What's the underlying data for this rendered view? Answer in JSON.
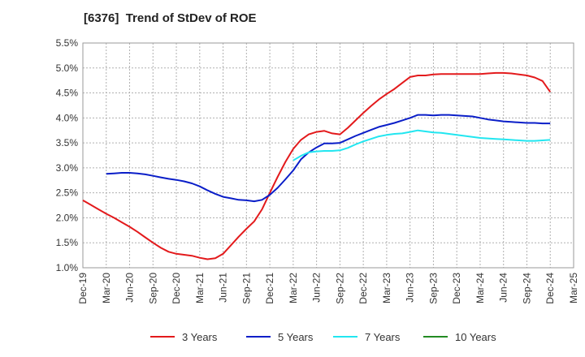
{
  "title": "[6376]  Trend of StDev of ROE",
  "chart_data": {
    "type": "line",
    "title": "[6376]  Trend of StDev of ROE",
    "xlabel": "",
    "ylabel": "",
    "x_ticks": [
      "Dec-19",
      "Mar-20",
      "Jun-20",
      "Sep-20",
      "Dec-20",
      "Mar-21",
      "Jun-21",
      "Sep-21",
      "Dec-21",
      "Mar-22",
      "Jun-22",
      "Sep-22",
      "Dec-22",
      "Mar-23",
      "Jun-23",
      "Sep-23",
      "Dec-23",
      "Mar-24",
      "Jun-24",
      "Sep-24",
      "Dec-24",
      "Mar-25"
    ],
    "y_ticks": [
      "1.0%",
      "1.5%",
      "2.0%",
      "2.5%",
      "3.0%",
      "3.5%",
      "4.0%",
      "4.5%",
      "5.0%",
      "5.5%"
    ],
    "ylim": [
      1.0,
      5.5
    ],
    "y_unit": "%",
    "grid": true,
    "legend_position": "bottom",
    "series": [
      {
        "name": "3 Years",
        "color": "#e31a1c",
        "points": [
          [
            "Dec-19",
            2.35
          ],
          [
            "Jan-20",
            2.26
          ],
          [
            "Feb-20",
            2.17
          ],
          [
            "Mar-20",
            2.08
          ],
          [
            "Apr-20",
            2.0
          ],
          [
            "May-20",
            1.91
          ],
          [
            "Jun-20",
            1.82
          ],
          [
            "Jul-20",
            1.72
          ],
          [
            "Aug-20",
            1.61
          ],
          [
            "Sep-20",
            1.5
          ],
          [
            "Oct-20",
            1.4
          ],
          [
            "Nov-20",
            1.32
          ],
          [
            "Dec-20",
            1.28
          ],
          [
            "Jan-21",
            1.26
          ],
          [
            "Feb-21",
            1.24
          ],
          [
            "Mar-21",
            1.2
          ],
          [
            "Apr-21",
            1.17
          ],
          [
            "May-21",
            1.19
          ],
          [
            "Jun-21",
            1.28
          ],
          [
            "Jul-21",
            1.45
          ],
          [
            "Aug-21",
            1.62
          ],
          [
            "Sep-21",
            1.78
          ],
          [
            "Oct-21",
            1.93
          ],
          [
            "Nov-21",
            2.17
          ],
          [
            "Dec-21",
            2.5
          ],
          [
            "Jan-22",
            2.82
          ],
          [
            "Feb-22",
            3.12
          ],
          [
            "Mar-22",
            3.38
          ],
          [
            "Apr-22",
            3.56
          ],
          [
            "May-22",
            3.67
          ],
          [
            "Jun-22",
            3.72
          ],
          [
            "Jul-22",
            3.74
          ],
          [
            "Aug-22",
            3.69
          ],
          [
            "Sep-22",
            3.67
          ],
          [
            "Oct-22",
            3.8
          ],
          [
            "Nov-22",
            3.95
          ],
          [
            "Dec-22",
            4.1
          ],
          [
            "Jan-23",
            4.24
          ],
          [
            "Feb-23",
            4.37
          ],
          [
            "Mar-23",
            4.48
          ],
          [
            "Apr-23",
            4.58
          ],
          [
            "May-23",
            4.7
          ],
          [
            "Jun-23",
            4.82
          ],
          [
            "Jul-23",
            4.85
          ],
          [
            "Aug-23",
            4.85
          ],
          [
            "Sep-23",
            4.87
          ],
          [
            "Oct-23",
            4.88
          ],
          [
            "Nov-23",
            4.88
          ],
          [
            "Dec-23",
            4.88
          ],
          [
            "Jan-24",
            4.88
          ],
          [
            "Feb-24",
            4.88
          ],
          [
            "Mar-24",
            4.88
          ],
          [
            "Apr-24",
            4.89
          ],
          [
            "May-24",
            4.9
          ],
          [
            "Jun-24",
            4.9
          ],
          [
            "Jul-24",
            4.89
          ],
          [
            "Aug-24",
            4.87
          ],
          [
            "Sep-24",
            4.85
          ],
          [
            "Oct-24",
            4.81
          ],
          [
            "Nov-24",
            4.74
          ],
          [
            "Dec-24",
            4.52
          ]
        ]
      },
      {
        "name": "5 Years",
        "color": "#0a1ec8",
        "points": [
          [
            "Mar-20",
            2.88
          ],
          [
            "Apr-20",
            2.89
          ],
          [
            "May-20",
            2.9
          ],
          [
            "Jun-20",
            2.9
          ],
          [
            "Jul-20",
            2.89
          ],
          [
            "Aug-20",
            2.87
          ],
          [
            "Sep-20",
            2.84
          ],
          [
            "Oct-20",
            2.81
          ],
          [
            "Nov-20",
            2.78
          ],
          [
            "Dec-20",
            2.76
          ],
          [
            "Jan-21",
            2.73
          ],
          [
            "Feb-21",
            2.69
          ],
          [
            "Mar-21",
            2.63
          ],
          [
            "Apr-21",
            2.55
          ],
          [
            "May-21",
            2.48
          ],
          [
            "Jun-21",
            2.42
          ],
          [
            "Jul-21",
            2.39
          ],
          [
            "Aug-21",
            2.36
          ],
          [
            "Sep-21",
            2.35
          ],
          [
            "Oct-21",
            2.33
          ],
          [
            "Nov-21",
            2.36
          ],
          [
            "Dec-21",
            2.46
          ],
          [
            "Jan-22",
            2.6
          ],
          [
            "Feb-22",
            2.77
          ],
          [
            "Mar-22",
            2.95
          ],
          [
            "Apr-22",
            3.17
          ],
          [
            "May-22",
            3.31
          ],
          [
            "Jun-22",
            3.41
          ],
          [
            "Jul-22",
            3.49
          ],
          [
            "Aug-22",
            3.49
          ],
          [
            "Sep-22",
            3.5
          ],
          [
            "Oct-22",
            3.57
          ],
          [
            "Nov-22",
            3.64
          ],
          [
            "Dec-22",
            3.7
          ],
          [
            "Jan-23",
            3.76
          ],
          [
            "Feb-23",
            3.82
          ],
          [
            "Mar-23",
            3.86
          ],
          [
            "Apr-23",
            3.9
          ],
          [
            "May-23",
            3.95
          ],
          [
            "Jun-23",
            4.0
          ],
          [
            "Jul-23",
            4.06
          ],
          [
            "Aug-23",
            4.06
          ],
          [
            "Sep-23",
            4.05
          ],
          [
            "Oct-23",
            4.06
          ],
          [
            "Nov-23",
            4.06
          ],
          [
            "Dec-23",
            4.05
          ],
          [
            "Jan-24",
            4.04
          ],
          [
            "Feb-24",
            4.03
          ],
          [
            "Mar-24",
            4.0
          ],
          [
            "Apr-24",
            3.97
          ],
          [
            "May-24",
            3.95
          ],
          [
            "Jun-24",
            3.93
          ],
          [
            "Jul-24",
            3.92
          ],
          [
            "Aug-24",
            3.91
          ],
          [
            "Sep-24",
            3.9
          ],
          [
            "Oct-24",
            3.9
          ],
          [
            "Nov-24",
            3.89
          ],
          [
            "Dec-24",
            3.89
          ]
        ]
      },
      {
        "name": "7 Years",
        "color": "#22e6f0",
        "points": [
          [
            "Mar-22",
            3.15
          ],
          [
            "Apr-22",
            3.24
          ],
          [
            "May-22",
            3.31
          ],
          [
            "Jun-22",
            3.33
          ],
          [
            "Jul-22",
            3.34
          ],
          [
            "Aug-22",
            3.34
          ],
          [
            "Sep-22",
            3.35
          ],
          [
            "Oct-22",
            3.4
          ],
          [
            "Nov-22",
            3.47
          ],
          [
            "Dec-22",
            3.53
          ],
          [
            "Jan-23",
            3.58
          ],
          [
            "Feb-23",
            3.63
          ],
          [
            "Mar-23",
            3.66
          ],
          [
            "Apr-23",
            3.68
          ],
          [
            "May-23",
            3.69
          ],
          [
            "Jun-23",
            3.72
          ],
          [
            "Jul-23",
            3.75
          ],
          [
            "Aug-23",
            3.73
          ],
          [
            "Sep-23",
            3.71
          ],
          [
            "Oct-23",
            3.7
          ],
          [
            "Nov-23",
            3.68
          ],
          [
            "Dec-23",
            3.66
          ],
          [
            "Jan-24",
            3.64
          ],
          [
            "Feb-24",
            3.62
          ],
          [
            "Mar-24",
            3.6
          ],
          [
            "Apr-24",
            3.59
          ],
          [
            "May-24",
            3.58
          ],
          [
            "Jun-24",
            3.57
          ],
          [
            "Jul-24",
            3.56
          ],
          [
            "Aug-24",
            3.55
          ],
          [
            "Sep-24",
            3.54
          ],
          [
            "Oct-24",
            3.54
          ],
          [
            "Nov-24",
            3.55
          ],
          [
            "Dec-24",
            3.56
          ]
        ]
      },
      {
        "name": "10 Years",
        "color": "#228b22",
        "points": []
      }
    ]
  }
}
